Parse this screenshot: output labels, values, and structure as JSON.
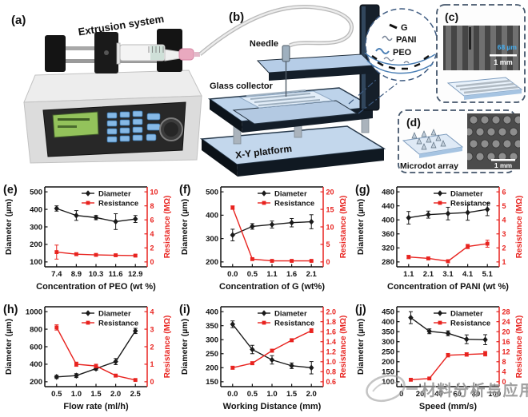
{
  "figure": {
    "watermark": {
      "text": "材料分析与应用"
    },
    "colors": {
      "diameter_series": "#1a1a1a",
      "resistance_series": "#e8231f",
      "platform_blue": "#c3d7ec",
      "dashed_outline": "#44566b",
      "inset_outline": "#3d5a80",
      "scale_text_blue": "#45aef0",
      "lcd_green": "#93c25b",
      "keypad_blue": "#86b9e6",
      "luer_pink": "#e9a9bf",
      "watermark_gray": "#8b8b8b"
    },
    "panels": {
      "a": {
        "label": "(a)",
        "title": "Extrusion system"
      },
      "b": {
        "label": "(b)",
        "needle": "Needle",
        "glass_collector": "Glass collector",
        "xy_platform": "X-Y platform",
        "inset_legend": [
          {
            "name": "G"
          },
          {
            "name": "PANI"
          },
          {
            "name": "PEO"
          }
        ]
      },
      "c": {
        "label": "(c)",
        "line_width": "68 µm",
        "scale_bar": "1 mm"
      },
      "d": {
        "label": "(d)",
        "caption": "Microdot array",
        "scale_bar": "1 mm"
      }
    }
  },
  "chart_data": [
    {
      "panel": "(e)",
      "type": "line",
      "grid": false,
      "legend_position": "top-right",
      "xlabel": "Concentration of PEO (wt %)",
      "xticks": [
        "7.4",
        "8.9",
        "10.3",
        "11.6",
        "12.9"
      ],
      "left": {
        "label": "Diameter (µm)",
        "ticks": [
          "100",
          "200",
          "300",
          "400",
          "500"
        ],
        "ylim": [
          100,
          500
        ]
      },
      "right": {
        "label": "Resistance (MΩ)",
        "ticks": [
          "0",
          "2",
          "4",
          "6",
          "8",
          "10"
        ],
        "ylim": [
          0,
          10
        ]
      },
      "series": [
        {
          "name": "Diameter",
          "axis": "left",
          "color": "#1a1a1a",
          "marker": "diamond",
          "values": [
            405,
            365,
            353,
            330,
            345
          ],
          "errors": [
            15,
            28,
            12,
            45,
            20
          ]
        },
        {
          "name": "Resistance",
          "axis": "right",
          "color": "#e8231f",
          "marker": "square",
          "values": [
            1.4,
            1.1,
            1.0,
            0.95,
            0.9
          ],
          "errors": [
            1.0,
            0.2,
            0.15,
            0.15,
            0.15
          ]
        }
      ]
    },
    {
      "panel": "(f)",
      "type": "line",
      "grid": false,
      "legend_position": "top-right",
      "xlabel": "Concentration of G (wt%)",
      "xticks": [
        "0.0",
        "0.5",
        "1.1",
        "1.6",
        "2.1"
      ],
      "left": {
        "label": "Diameter (µm)",
        "ticks": [
          "200",
          "300",
          "400",
          "500"
        ],
        "ylim": [
          200,
          500
        ]
      },
      "right": {
        "label": "Resistance (MΩ)",
        "ticks": [
          "0",
          "5",
          "10",
          "15",
          "20"
        ],
        "ylim": [
          0,
          20
        ]
      },
      "series": [
        {
          "name": "Diameter",
          "axis": "left",
          "color": "#1a1a1a",
          "marker": "diamond",
          "values": [
            315,
            352,
            360,
            368,
            372
          ],
          "errors": [
            25,
            12,
            15,
            18,
            30
          ]
        },
        {
          "name": "Resistance",
          "axis": "right",
          "color": "#e8231f",
          "marker": "square",
          "values": [
            15.5,
            0.8,
            0.3,
            0.3,
            0.3
          ],
          "errors": [
            0.5,
            0.3,
            0.15,
            0.15,
            0.15
          ]
        }
      ]
    },
    {
      "panel": "(g)",
      "type": "line",
      "grid": false,
      "legend_position": "top-right",
      "xlabel": "Concentration of PANI (wt %)",
      "xticks": [
        "1.1",
        "2.1",
        "3.1",
        "4.1",
        "5.1"
      ],
      "left": {
        "label": "Diameter (µm)",
        "ticks": [
          "280",
          "320",
          "360",
          "400",
          "440",
          "480"
        ],
        "ylim": [
          280,
          480
        ]
      },
      "right": {
        "label": "Resistance (MΩ)",
        "ticks": [
          "1",
          "2",
          "3",
          "4",
          "5",
          "6"
        ],
        "ylim": [
          1,
          6
        ]
      },
      "series": [
        {
          "name": "Diameter",
          "axis": "left",
          "color": "#1a1a1a",
          "marker": "diamond",
          "values": [
            406,
            415,
            418,
            421,
            430
          ],
          "errors": [
            18,
            10,
            18,
            22,
            18
          ]
        },
        {
          "name": "Resistance",
          "axis": "right",
          "color": "#e8231f",
          "marker": "square",
          "values": [
            1.35,
            1.25,
            1.05,
            2.1,
            2.3
          ],
          "errors": [
            0.12,
            0.1,
            0.1,
            0.15,
            0.25
          ]
        }
      ]
    },
    {
      "panel": "(h)",
      "type": "line",
      "grid": false,
      "legend_position": "top-right",
      "xlabel": "Flow rate (ml/h)",
      "xticks": [
        "0.5",
        "1.0",
        "1.5",
        "2.0",
        "2.5"
      ],
      "left": {
        "label": "Diameter (µm)",
        "ticks": [
          "200",
          "400",
          "600",
          "800",
          "1000"
        ],
        "ylim": [
          200,
          1000
        ]
      },
      "right": {
        "label": "Resistance (MΩ)",
        "ticks": [
          "0",
          "1",
          "2",
          "3",
          "4"
        ],
        "ylim": [
          0,
          4
        ]
      },
      "series": [
        {
          "name": "Diameter",
          "axis": "left",
          "color": "#1a1a1a",
          "marker": "diamond",
          "values": [
            255,
            270,
            350,
            430,
            780
          ],
          "errors": [
            18,
            22,
            18,
            35,
            30
          ]
        },
        {
          "name": "Resistance",
          "axis": "right",
          "color": "#e8231f",
          "marker": "square",
          "values": [
            3.1,
            1.0,
            0.9,
            0.35,
            0.1
          ],
          "errors": [
            0.15,
            0.12,
            0.1,
            0.08,
            0.05
          ]
        }
      ]
    },
    {
      "panel": "(i)",
      "type": "line",
      "grid": false,
      "legend_position": "top-right",
      "xlabel": "Working Distance (mm)",
      "xticks": [
        "0.0",
        "0.5",
        "1.0",
        "1.5",
        "2.0"
      ],
      "left": {
        "label": "Diameter (µm)",
        "ticks": [
          "150",
          "200",
          "250",
          "300",
          "350",
          "400"
        ],
        "ylim": [
          150,
          400
        ]
      },
      "right": {
        "label": "Resistance (MΩ)",
        "ticks": [
          "0.6",
          "0.8",
          "1.0",
          "1.2",
          "1.4",
          "1.6",
          "1.8",
          "2.0"
        ],
        "ylim": [
          0.6,
          2.0
        ]
      },
      "series": [
        {
          "name": "Diameter",
          "axis": "left",
          "color": "#1a1a1a",
          "marker": "diamond",
          "values": [
            355,
            265,
            228,
            207,
            200
          ],
          "errors": [
            12,
            15,
            15,
            10,
            22
          ]
        },
        {
          "name": "Resistance",
          "axis": "right",
          "color": "#e8231f",
          "marker": "square",
          "values": [
            0.88,
            0.97,
            1.22,
            1.43,
            1.62
          ],
          "errors": [
            0.03,
            0.03,
            0.03,
            0.03,
            0.04
          ]
        }
      ]
    },
    {
      "panel": "(j)",
      "type": "line",
      "grid": false,
      "legend_position": "top-right",
      "xlabel": "Speed (mm/s)",
      "x": [
        10,
        30,
        50,
        70,
        90
      ],
      "xlim": [
        -5,
        105
      ],
      "xticks": [
        "0",
        "20",
        "40",
        "60",
        "80",
        "100"
      ],
      "left": {
        "label": "Diameter (µm)",
        "ticks": [
          "100",
          "150",
          "200",
          "250",
          "300",
          "350",
          "400",
          "450"
        ],
        "ylim": [
          100,
          450
        ]
      },
      "right": {
        "label": "Resistance (MΩ)",
        "ticks": [
          "0",
          "4",
          "8",
          "12",
          "16",
          "20",
          "24",
          "28"
        ],
        "ylim": [
          0,
          28
        ]
      },
      "series": [
        {
          "name": "Diameter",
          "axis": "left",
          "color": "#1a1a1a",
          "marker": "diamond",
          "values": [
            420,
            352,
            342,
            312,
            310
          ],
          "errors": [
            30,
            12,
            12,
            22,
            25
          ]
        },
        {
          "name": "Resistance",
          "axis": "right",
          "color": "#e8231f",
          "marker": "square",
          "values": [
            0.8,
            1.3,
            10.6,
            10.9,
            11.2
          ],
          "errors": [
            0.5,
            0.5,
            0.7,
            0.7,
            0.9
          ]
        }
      ]
    }
  ]
}
